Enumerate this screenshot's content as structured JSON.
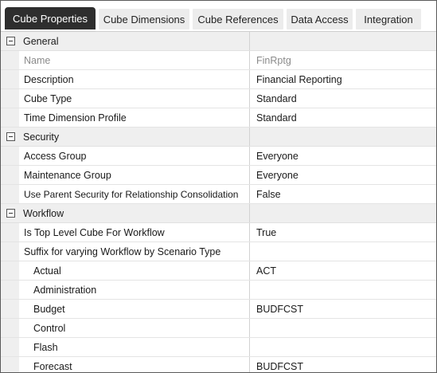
{
  "tabs": [
    {
      "label": "Cube Properties",
      "active": true
    },
    {
      "label": "Cube Dimensions",
      "active": false
    },
    {
      "label": "Cube References",
      "active": false
    },
    {
      "label": "Data Access",
      "active": false
    },
    {
      "label": "Integration",
      "active": false
    }
  ],
  "sections": {
    "general": {
      "title": "General",
      "rows": [
        {
          "name": "Name",
          "value": "FinRptg"
        },
        {
          "name": "Description",
          "value": "Financial Reporting"
        },
        {
          "name": "Cube Type",
          "value": "Standard"
        },
        {
          "name": "Time Dimension Profile",
          "value": "Standard"
        }
      ]
    },
    "security": {
      "title": "Security",
      "rows": [
        {
          "name": "Access Group",
          "value": "Everyone"
        },
        {
          "name": "Maintenance Group",
          "value": "Everyone"
        },
        {
          "name": "Use Parent Security for Relationship Consolidation",
          "value": "False"
        }
      ]
    },
    "workflow": {
      "title": "Workflow",
      "rows": [
        {
          "name": "Is Top Level Cube For Workflow",
          "value": "True"
        },
        {
          "name": "Suffix for varying Workflow by Scenario Type",
          "value": ""
        },
        {
          "name": "Actual",
          "value": "ACT"
        },
        {
          "name": "Administration",
          "value": ""
        },
        {
          "name": "Budget",
          "value": "BUDFCST"
        },
        {
          "name": "Control",
          "value": ""
        },
        {
          "name": "Flash",
          "value": ""
        },
        {
          "name": "Forecast",
          "value": "BUDFCST"
        }
      ]
    }
  }
}
